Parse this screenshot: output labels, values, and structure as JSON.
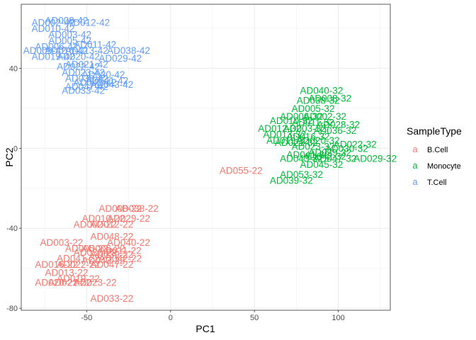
{
  "chart_data": {
    "type": "scatter",
    "mark": "text",
    "title": "",
    "xlabel": "PC1",
    "ylabel": "PC2",
    "xlim": [
      -89,
      131
    ],
    "ylim": [
      -81,
      72
    ],
    "xticks": [
      -50,
      0,
      50,
      100
    ],
    "yticks": [
      -80,
      -40,
      0,
      40
    ],
    "grid": true,
    "legend": {
      "title": "SampleType",
      "position": "right",
      "key_glyph": "a",
      "entries": [
        {
          "label": "B.Cell",
          "color": "#F8766D"
        },
        {
          "label": "Monocyte",
          "color": "#00BA38"
        },
        {
          "label": "T.Cell",
          "color": "#619CFF"
        }
      ]
    },
    "series": [
      {
        "name": "B.Cell",
        "color": "#F8766D",
        "points": [
          {
            "x": -30,
            "y": -30,
            "label": "AD008-22"
          },
          {
            "x": -20,
            "y": -30,
            "label": "AD038-22"
          },
          {
            "x": -40,
            "y": -35,
            "label": "AD010-22"
          },
          {
            "x": -25,
            "y": -35,
            "label": "AD029-22"
          },
          {
            "x": -45,
            "y": -38,
            "label": "AD002-22"
          },
          {
            "x": -35,
            "y": -38,
            "label": "AD012-22"
          },
          {
            "x": -35,
            "y": -44,
            "label": "AD048-22"
          },
          {
            "x": -65,
            "y": -47,
            "label": "AD003-22"
          },
          {
            "x": -25,
            "y": -47,
            "label": "AD040-22"
          },
          {
            "x": -50,
            "y": -50,
            "label": "AD005-22"
          },
          {
            "x": -40,
            "y": -50,
            "label": "AD006-22"
          },
          {
            "x": -30,
            "y": -51,
            "label": "AD011-22"
          },
          {
            "x": -45,
            "y": -52,
            "label": "AD030-22"
          },
          {
            "x": -35,
            "y": -53,
            "label": "AD039-22"
          },
          {
            "x": -55,
            "y": -55,
            "label": "AD041-22"
          },
          {
            "x": -30,
            "y": -55,
            "label": "AD042-22"
          },
          {
            "x": -40,
            "y": -56,
            "label": "AD043-22"
          },
          {
            "x": -68,
            "y": -58,
            "label": "AD016-22"
          },
          {
            "x": -55,
            "y": -58,
            "label": "AD022-22"
          },
          {
            "x": -35,
            "y": -58,
            "label": "AD047-22"
          },
          {
            "x": -62,
            "y": -62,
            "label": "AD013-22"
          },
          {
            "x": -55,
            "y": -65,
            "label": "AD019-22"
          },
          {
            "x": -68,
            "y": -67,
            "label": "AD020-22"
          },
          {
            "x": -45,
            "y": -67,
            "label": "AD023-22"
          },
          {
            "x": -60,
            "y": -67,
            "label": "AD021-22"
          },
          {
            "x": -35,
            "y": -75,
            "label": "AD033-22"
          },
          {
            "x": 42,
            "y": -11,
            "label": "AD055-22"
          }
        ]
      },
      {
        "name": "Monocyte",
        "color": "#00BA38",
        "points": [
          {
            "x": 90,
            "y": 29,
            "label": "AD040-32"
          },
          {
            "x": 95,
            "y": 25,
            "label": "AD008-32"
          },
          {
            "x": 88,
            "y": 24,
            "label": "AD038-32"
          },
          {
            "x": 85,
            "y": 20,
            "label": "AD005-32"
          },
          {
            "x": 78,
            "y": 16,
            "label": "AD006-32"
          },
          {
            "x": 92,
            "y": 16,
            "label": "AD002-32"
          },
          {
            "x": 72,
            "y": 14,
            "label": "AD010-32"
          },
          {
            "x": 85,
            "y": 13,
            "label": "AD011-32"
          },
          {
            "x": 100,
            "y": 12,
            "label": "AD028-32"
          },
          {
            "x": 65,
            "y": 10,
            "label": "AD012-32"
          },
          {
            "x": 80,
            "y": 10,
            "label": "AD003-32"
          },
          {
            "x": 98,
            "y": 9,
            "label": "AD036-32"
          },
          {
            "x": 68,
            "y": 7,
            "label": "AD013-32"
          },
          {
            "x": 82,
            "y": 6,
            "label": "AD016-32"
          },
          {
            "x": 70,
            "y": 4,
            "label": "AD019-32"
          },
          {
            "x": 88,
            "y": 4,
            "label": "AD020-32"
          },
          {
            "x": 75,
            "y": 3,
            "label": "AD021-32"
          },
          {
            "x": 110,
            "y": 2,
            "label": "AD022-32"
          },
          {
            "x": 85,
            "y": 1,
            "label": "AD023-32"
          },
          {
            "x": 105,
            "y": 0,
            "label": "AD030-32"
          },
          {
            "x": 95,
            "y": -2,
            "label": "AD039-32"
          },
          {
            "x": 82,
            "y": -3,
            "label": "AD041-32"
          },
          {
            "x": 92,
            "y": -4,
            "label": "AD042-32"
          },
          {
            "x": 78,
            "y": -5,
            "label": "AD043-32"
          },
          {
            "x": 122,
            "y": -5,
            "label": "AD029-32"
          },
          {
            "x": 98,
            "y": -5,
            "label": "AD047-32"
          },
          {
            "x": 90,
            "y": -8,
            "label": "AD045-32"
          },
          {
            "x": 78,
            "y": -13,
            "label": "AD053-32"
          },
          {
            "x": 72,
            "y": -16,
            "label": "AD039-32"
          }
        ]
      },
      {
        "name": "T.Cell",
        "color": "#619CFF",
        "points": [
          {
            "x": -62,
            "y": 64,
            "label": "AD008-42"
          },
          {
            "x": -70,
            "y": 63,
            "label": "AD002-42"
          },
          {
            "x": -49,
            "y": 63,
            "label": "AD012-42"
          },
          {
            "x": -70,
            "y": 60,
            "label": "AD010-42"
          },
          {
            "x": -60,
            "y": 57,
            "label": "AD003-42"
          },
          {
            "x": -60,
            "y": 54,
            "label": "AD005-42"
          },
          {
            "x": -45,
            "y": 52,
            "label": "AD011-42"
          },
          {
            "x": -68,
            "y": 51,
            "label": "AD006-42"
          },
          {
            "x": -75,
            "y": 49,
            "label": "AD009-42"
          },
          {
            "x": -62,
            "y": 49,
            "label": "AD016-42"
          },
          {
            "x": -50,
            "y": 49,
            "label": "AD013-42"
          },
          {
            "x": -25,
            "y": 49,
            "label": "AD038-42"
          },
          {
            "x": -70,
            "y": 46,
            "label": "AD019-42"
          },
          {
            "x": -55,
            "y": 46,
            "label": "AD020-42"
          },
          {
            "x": -30,
            "y": 45,
            "label": "AD029-42"
          },
          {
            "x": -50,
            "y": 42,
            "label": "AD021-42"
          },
          {
            "x": -55,
            "y": 41,
            "label": "AD022-42"
          },
          {
            "x": -52,
            "y": 38,
            "label": "AD023-42"
          },
          {
            "x": -40,
            "y": 37,
            "label": "AD030-42"
          },
          {
            "x": -50,
            "y": 35,
            "label": "AD039-42"
          },
          {
            "x": -38,
            "y": 34,
            "label": "AD041-42"
          },
          {
            "x": -45,
            "y": 33,
            "label": "AD042-42"
          },
          {
            "x": -35,
            "y": 32,
            "label": "AD043-42"
          },
          {
            "x": -50,
            "y": 31,
            "label": "AD047-42"
          },
          {
            "x": -52,
            "y": 29,
            "label": "AD033-42"
          }
        ]
      }
    ]
  }
}
